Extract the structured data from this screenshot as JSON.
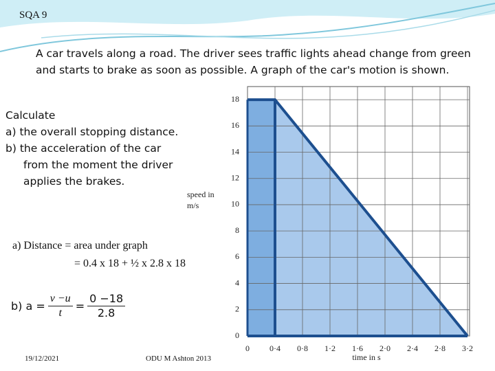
{
  "slide": {
    "label": "SQA 9",
    "intro": "A car travels along a road. The driver sees traffic lights ahead change from green and starts to brake as soon as possible. A graph of the car's motion is shown.",
    "questions": {
      "heading": "Calculate",
      "a": "a)  the overall stopping distance.",
      "b": "b)   the acceleration of the car from the moment the driver applies the brakes."
    },
    "answer_a": [
      "a) Distance = area under graph",
      "= 0.4 x 18 + ½ x 2.8 x 18"
    ],
    "answer_b": {
      "lead": "b) a =",
      "num1": "v −u",
      "den1": "t",
      "eq": "=",
      "num2": "0 −18",
      "den2": "2.8"
    },
    "date": "19/12/2021",
    "author": "ODU M Ashton 2013"
  },
  "chart_data": {
    "type": "area",
    "x_label": "time in s",
    "y_label": [
      "speed in",
      "m/s"
    ],
    "x": [
      0,
      0.4,
      3.2
    ],
    "values": [
      18,
      18,
      0
    ],
    "color": "#a9c9ec",
    "rect_color": "#7eaee0",
    "line_color": "#1d4f8f",
    "xlim": [
      0,
      3.2
    ],
    "ylim": [
      0,
      19
    ],
    "xticks": [
      0,
      {
        "value": 0.4,
        "label": "0·4"
      },
      {
        "value": 0.8,
        "label": "0·8"
      },
      {
        "value": 1.2,
        "label": "1·2"
      },
      {
        "value": 1.6,
        "label": "1·6"
      },
      {
        "value": 2.0,
        "label": "2·0"
      },
      {
        "value": 2.4,
        "label": "2·4"
      },
      {
        "value": 2.8,
        "label": "2·8"
      },
      {
        "value": 3.2,
        "label": "3·2"
      }
    ],
    "yticks": [
      0,
      2,
      4,
      6,
      8,
      10,
      12,
      14,
      16,
      18
    ],
    "grid": true
  }
}
